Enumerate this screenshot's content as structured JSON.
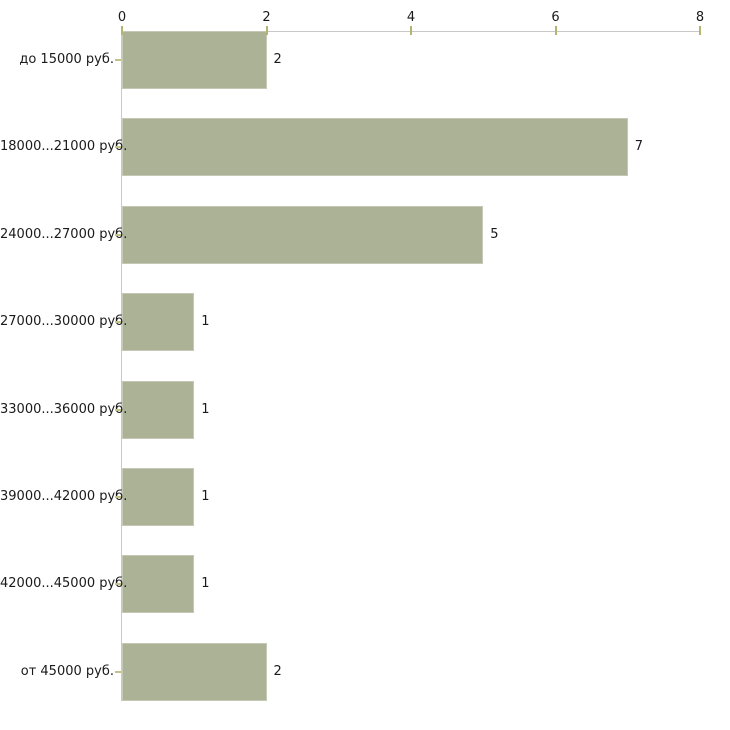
{
  "chart_data": {
    "type": "bar",
    "orientation": "horizontal",
    "title": "",
    "xlabel": "",
    "ylabel": "",
    "categories": [
      "до 15000 руб.",
      "18000...21000 руб.",
      "24000...27000 руб.",
      "27000...30000 руб.",
      "33000...36000 руб.",
      "39000...42000 руб.",
      "42000...45000 руб.",
      "от 45000 руб."
    ],
    "values": [
      2,
      7,
      5,
      1,
      1,
      1,
      1,
      2
    ],
    "value_labels": [
      "2",
      "7",
      "5",
      "1",
      "1",
      "1",
      "1",
      "2"
    ],
    "x_axis": {
      "position": "top",
      "min": 0,
      "max": 8,
      "ticks": [
        0,
        2,
        4,
        6,
        8
      ],
      "tick_labels": [
        "0",
        "2",
        "4",
        "6",
        "8"
      ]
    },
    "legend": "none",
    "grid": "off",
    "colors": {
      "bar_fill": "#acb295",
      "bar_border": "#c5c8b6",
      "axis_line": "#c9c9c9",
      "tick_mark": "#b5b570",
      "text": "#1a1a1a",
      "background": "#ffffff"
    }
  }
}
